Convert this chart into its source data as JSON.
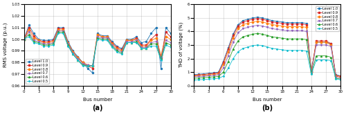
{
  "bus_numbers": [
    0,
    1,
    2,
    3,
    4,
    5,
    6,
    7,
    8,
    9,
    10,
    11,
    12,
    13,
    14,
    15,
    16,
    17,
    18,
    19,
    20,
    21,
    22,
    23,
    24,
    25,
    26,
    27,
    28,
    29,
    30
  ],
  "voltage_profiles": {
    "Level 1.0": [
      1.0,
      1.012,
      1.005,
      1.0,
      0.999,
      0.999,
      1.0,
      1.01,
      1.01,
      0.998,
      0.99,
      0.985,
      0.98,
      0.975,
      0.971,
      1.005,
      1.003,
      1.003,
      0.998,
      0.994,
      0.992,
      1.0,
      1.0,
      1.002,
      0.997,
      0.998,
      1.005,
      1.01,
      0.975,
      1.01,
      1.005
    ],
    "Level 0.9": [
      1.0,
      1.01,
      1.003,
      0.999,
      0.998,
      0.998,
      0.999,
      1.009,
      1.009,
      0.997,
      0.989,
      0.984,
      0.98,
      0.977,
      0.975,
      1.004,
      1.002,
      1.002,
      0.997,
      0.993,
      0.991,
      0.999,
      0.999,
      1.001,
      0.995,
      0.995,
      1.0,
      1.004,
      0.984,
      1.006,
      1.002
    ],
    "Level 0.8": [
      1.0,
      1.008,
      1.001,
      0.999,
      0.997,
      0.997,
      0.998,
      1.008,
      1.008,
      0.997,
      0.989,
      0.984,
      0.98,
      0.978,
      0.977,
      1.004,
      1.002,
      1.002,
      0.996,
      0.992,
      0.99,
      0.999,
      0.999,
      1.0,
      0.994,
      0.994,
      0.999,
      1.001,
      0.986,
      1.002,
      1.0
    ],
    "Level 0.7": [
      1.0,
      1.006,
      0.999,
      0.998,
      0.996,
      0.996,
      0.997,
      1.007,
      1.007,
      0.996,
      0.988,
      0.983,
      0.979,
      0.978,
      0.977,
      1.002,
      1.001,
      1.001,
      0.995,
      0.991,
      0.989,
      0.998,
      0.998,
      0.999,
      0.993,
      0.993,
      0.997,
      0.998,
      0.984,
      0.999,
      0.997
    ],
    "Level 0.6": [
      1.0,
      1.004,
      0.998,
      0.997,
      0.995,
      0.995,
      0.996,
      1.006,
      1.006,
      0.995,
      0.987,
      0.982,
      0.978,
      0.977,
      0.977,
      1.001,
      1.0,
      1.0,
      0.994,
      0.99,
      0.988,
      0.997,
      0.997,
      0.998,
      0.992,
      0.992,
      0.996,
      0.996,
      0.983,
      0.997,
      0.995
    ],
    "Level 0.5": [
      1.0,
      1.002,
      0.997,
      0.996,
      0.994,
      0.994,
      0.995,
      1.005,
      1.005,
      0.994,
      0.987,
      0.982,
      0.977,
      0.977,
      0.977,
      1.0,
      0.999,
      0.999,
      0.993,
      0.989,
      0.987,
      0.997,
      0.997,
      0.997,
      0.992,
      0.992,
      0.994,
      0.994,
      0.982,
      0.995,
      0.993
    ]
  },
  "thdv_profiles": {
    "Level 1.0": [
      0.82,
      0.85,
      0.88,
      0.92,
      0.95,
      1.0,
      1.8,
      2.8,
      3.8,
      4.5,
      4.8,
      4.9,
      5.0,
      5.05,
      5.0,
      4.9,
      4.8,
      4.75,
      4.7,
      4.65,
      4.65,
      4.65,
      4.65,
      4.6,
      1.1,
      3.2,
      3.2,
      3.2,
      3.1,
      0.82,
      0.72
    ],
    "Level 0.9": [
      0.78,
      0.8,
      0.83,
      0.87,
      0.9,
      0.95,
      1.7,
      2.7,
      3.7,
      4.4,
      4.7,
      4.8,
      4.9,
      4.95,
      4.9,
      4.8,
      4.7,
      4.65,
      4.6,
      4.55,
      4.55,
      4.55,
      4.55,
      4.5,
      1.05,
      3.3,
      3.3,
      3.3,
      3.1,
      0.78,
      0.68
    ],
    "Level 0.8": [
      0.72,
      0.74,
      0.77,
      0.8,
      0.83,
      0.88,
      1.55,
      2.5,
      3.5,
      4.2,
      4.5,
      4.6,
      4.7,
      4.75,
      4.7,
      4.6,
      4.5,
      4.45,
      4.4,
      4.35,
      4.35,
      4.35,
      4.35,
      4.3,
      1.0,
      3.2,
      3.2,
      3.2,
      3.0,
      0.72,
      0.62
    ],
    "Level 0.7": [
      0.65,
      0.68,
      0.7,
      0.73,
      0.76,
      0.8,
      1.3,
      2.2,
      3.2,
      3.9,
      4.2,
      4.3,
      4.4,
      4.45,
      4.4,
      4.3,
      4.2,
      4.15,
      4.1,
      4.05,
      4.05,
      4.05,
      4.05,
      4.0,
      0.95,
      3.0,
      3.0,
      3.0,
      2.9,
      0.65,
      0.56
    ],
    "Level 0.6": [
      0.55,
      0.57,
      0.6,
      0.63,
      0.65,
      0.68,
      1.0,
      1.8,
      2.7,
      3.3,
      3.6,
      3.7,
      3.8,
      3.85,
      3.8,
      3.7,
      3.6,
      3.55,
      3.5,
      3.45,
      3.45,
      3.45,
      3.45,
      3.4,
      0.9,
      2.2,
      2.2,
      2.2,
      2.1,
      0.55,
      0.48
    ],
    "Level 0.5": [
      0.42,
      0.44,
      0.46,
      0.49,
      0.51,
      0.55,
      0.7,
      1.3,
      2.0,
      2.5,
      2.75,
      2.85,
      2.95,
      3.0,
      2.95,
      2.85,
      2.75,
      2.7,
      2.65,
      2.6,
      2.6,
      2.6,
      2.6,
      2.55,
      0.85,
      1.9,
      1.9,
      1.9,
      1.85,
      0.5,
      0.44
    ]
  },
  "colors": {
    "Level 1.0": "#1f77b4",
    "Level 0.9": "#d62728",
    "Level 0.8": "#ff7f0e",
    "Level 0.7": "#9467bd",
    "Level 0.6": "#2ca02c",
    "Level 0.5": "#17becf"
  },
  "markers": {
    "Level 1.0": "o",
    "Level 0.9": "s",
    "Level 0.8": "D",
    "Level 0.7": "v",
    "Level 0.6": "^",
    "Level 0.5": "*"
  },
  "voltage_ylim": [
    0.96,
    1.03
  ],
  "thdv_ylim": [
    0,
    6
  ],
  "voltage_yticks": [
    0.96,
    0.97,
    0.98,
    0.99,
    1.0,
    1.01,
    1.02,
    1.03
  ],
  "thdv_yticks": [
    0,
    1,
    2,
    3,
    4,
    5,
    6
  ],
  "xticks": [
    0,
    3,
    6,
    9,
    12,
    15,
    18,
    21,
    24,
    27,
    30
  ],
  "xlabel": "Bus number",
  "voltage_ylabel": "RMS voltage (p.u.)",
  "thdv_ylabel": "THD of voltage (%)",
  "label_a": "(a)",
  "label_b": "(b)"
}
